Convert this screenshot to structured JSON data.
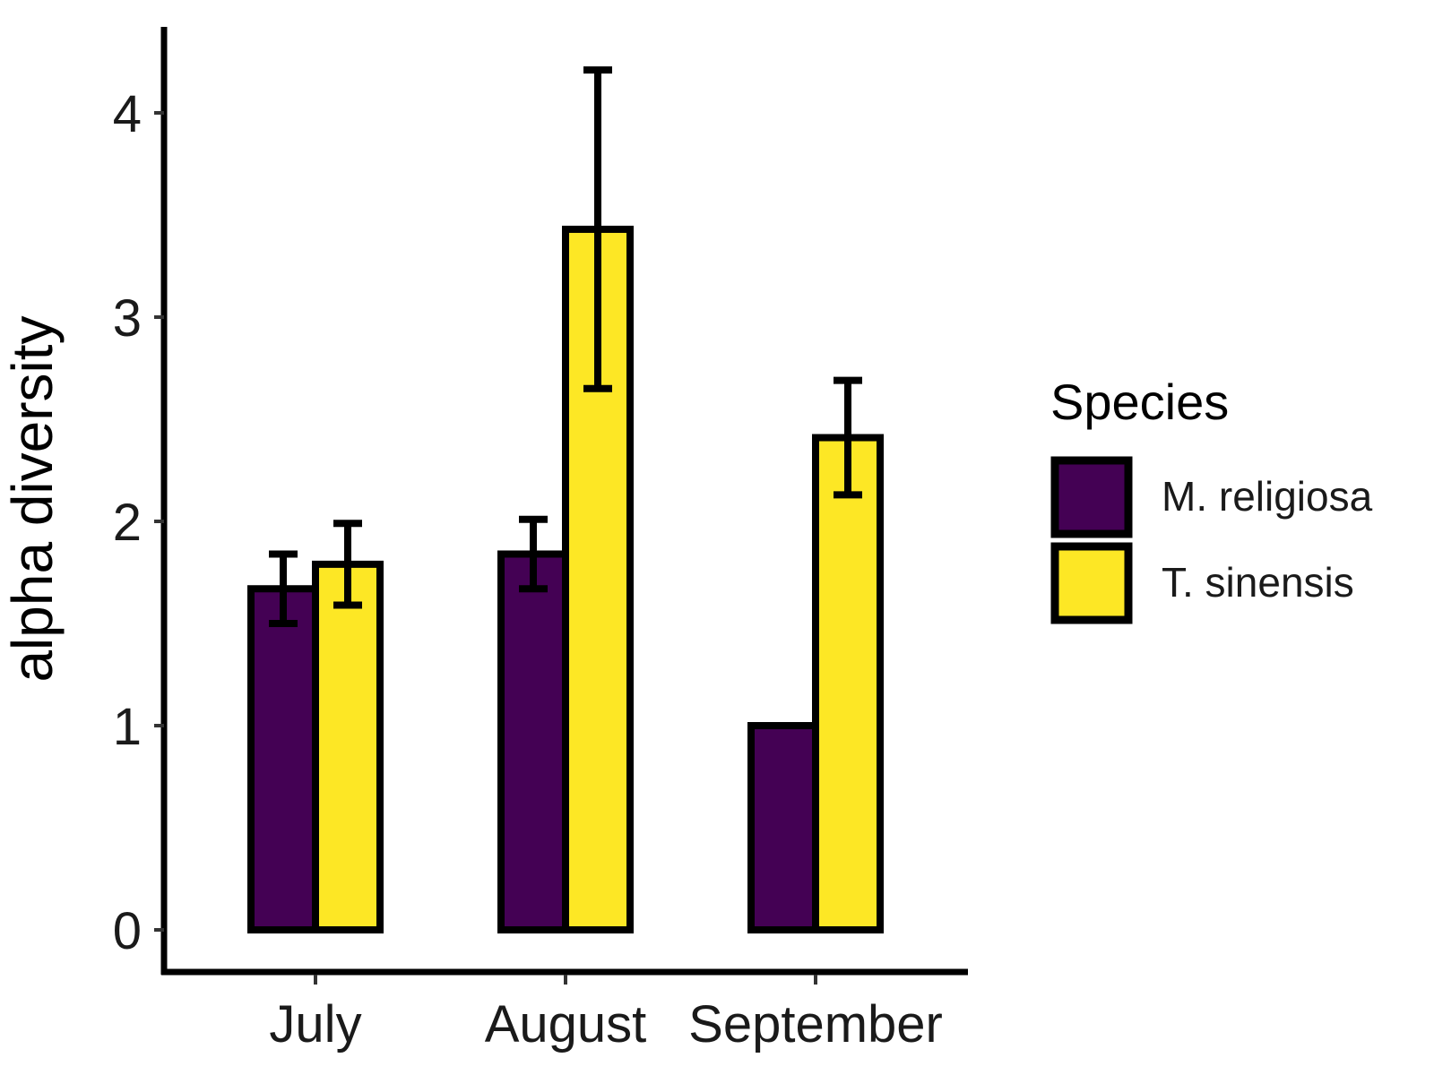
{
  "chart_data": {
    "type": "bar",
    "title": "",
    "xlabel": "",
    "ylabel": "alpha diversity",
    "ylim": [
      0,
      4.4
    ],
    "yticks": [
      0,
      1,
      2,
      3,
      4
    ],
    "categories": [
      "July",
      "August",
      "September"
    ],
    "series": [
      {
        "name": "M. religiosa",
        "color": "#440154",
        "values": [
          1.67,
          1.84,
          1.0
        ],
        "errors": [
          0.17,
          0.17,
          0.0
        ]
      },
      {
        "name": "T. sinensis",
        "color": "#fde725",
        "values": [
          1.79,
          3.43,
          2.41
        ],
        "errors": [
          0.2,
          0.78,
          0.28
        ]
      }
    ],
    "legend": {
      "title": "Species",
      "position": "right"
    },
    "grid": false
  }
}
